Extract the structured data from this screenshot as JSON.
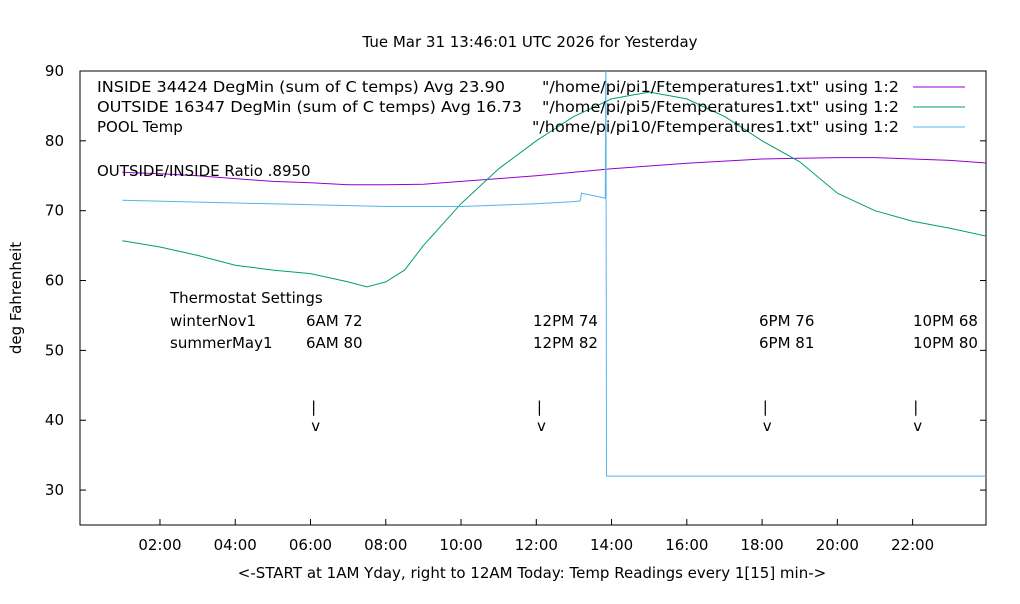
{
  "chart_data": {
    "type": "line",
    "title": "Tue Mar 31 13:46:01 UTC 2026 for Yesterday",
    "xlabel": "<-START at 1AM Yday, right to 12AM Today:  Temp Readings every 1[15] min->",
    "ylabel": "deg Fahrenheit",
    "xlim_hours": [
      -0.125,
      23.95
    ],
    "ylim": [
      25,
      90
    ],
    "yticks": [
      30,
      40,
      50,
      60,
      70,
      80,
      90
    ],
    "xticks": [
      "02:00",
      "04:00",
      "06:00",
      "08:00",
      "10:00",
      "12:00",
      "14:00",
      "16:00",
      "18:00",
      "20:00",
      "22:00"
    ],
    "grid": false,
    "legend_position": "top-right",
    "series": [
      {
        "name": "\"/home/pi/pi1/Ftemperatures1.txt\" using 1:2",
        "label": "INSIDE 34424 DegMin (sum of C temps) Avg 23.90",
        "color": "#9400d3",
        "x": [
          "01:00",
          "02:00",
          "03:00",
          "04:00",
          "05:00",
          "06:00",
          "07:00",
          "08:00",
          "09:00",
          "10:00",
          "11:00",
          "12:00",
          "13:00",
          "14:00",
          "15:00",
          "16:00",
          "17:00",
          "18:00",
          "19:00",
          "20:00",
          "21:00",
          "22:00",
          "23:00",
          "24:00"
        ],
        "y": [
          75.5,
          75.3,
          75.0,
          74.6,
          74.2,
          74.0,
          73.7,
          73.7,
          73.8,
          74.2,
          74.6,
          75.0,
          75.5,
          76.0,
          76.4,
          76.8,
          77.1,
          77.4,
          77.5,
          77.6,
          77.6,
          77.4,
          77.2,
          76.8
        ]
      },
      {
        "name": "\"/home/pi/pi5/Ftemperatures1.txt\" using 1:2",
        "label": "OUTSIDE 16347 DegMin (sum of C temps) Avg 16.73",
        "color": "#009e73",
        "x": [
          "01:00",
          "02:00",
          "03:00",
          "04:00",
          "05:00",
          "06:00",
          "07:00",
          "07:30",
          "08:00",
          "08:30",
          "09:00",
          "10:00",
          "11:00",
          "12:00",
          "13:00",
          "14:00",
          "15:00",
          "16:00",
          "17:00",
          "18:00",
          "19:00",
          "20:00",
          "21:00",
          "22:00",
          "23:00",
          "24:00"
        ],
        "y": [
          65.7,
          64.8,
          63.6,
          62.2,
          61.5,
          61.0,
          59.8,
          59.1,
          59.8,
          61.5,
          65.0,
          71.0,
          76.0,
          80.0,
          83.5,
          86.0,
          87.0,
          86.0,
          83.5,
          80.0,
          77.0,
          72.5,
          70.0,
          68.5,
          67.5,
          66.3
        ]
      },
      {
        "name": "\"/home/pi/pi10/Ftemperatures1.txt\" using 1:2",
        "label": "POOL Temp",
        "color": "#56b4e9",
        "x": [
          "01:00",
          "04:00",
          "08:00",
          "10:00",
          "12:00",
          "13:00",
          "13:10",
          "13:12",
          "13:50",
          "13:51",
          "13:52",
          "24:00"
        ],
        "y": [
          71.5,
          71.1,
          70.6,
          70.6,
          71.0,
          71.3,
          71.4,
          72.5,
          71.8,
          95,
          32,
          32
        ]
      }
    ],
    "annotations": {
      "ratio": "OUTSIDE/INSIDE Ratio .8950",
      "thermostat_title": "Thermostat Settings",
      "rows": [
        {
          "name": "winterNov1",
          "settings": [
            "6AM 72",
            "12PM 74",
            "6PM 76",
            "10PM 68"
          ]
        },
        {
          "name": "summerMay1",
          "settings": [
            "6AM 80",
            "12PM 82",
            "6PM 81",
            "10PM 80"
          ]
        }
      ],
      "arrow_times": [
        "06:05",
        "12:05",
        "18:05",
        "22:05"
      ],
      "arrow_glyph_top": "|",
      "arrow_glyph_bottom": "v"
    }
  }
}
